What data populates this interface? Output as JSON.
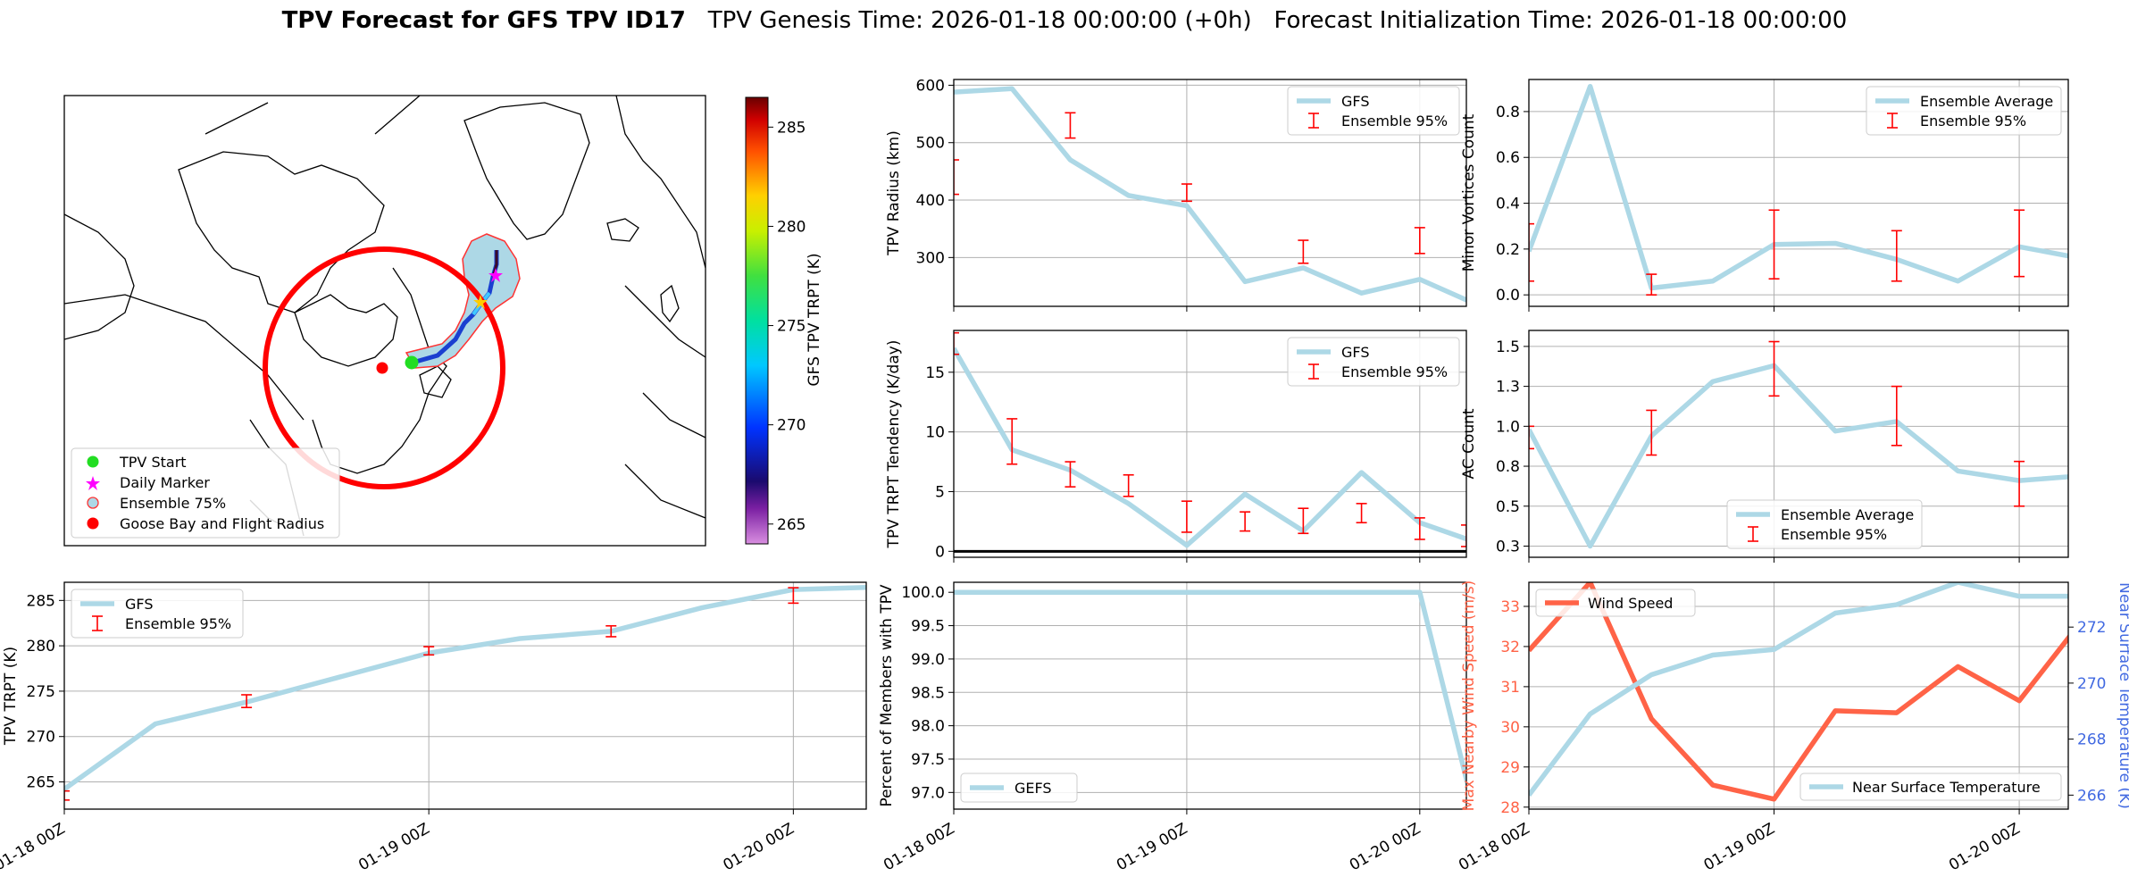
{
  "title": {
    "bold": "TPV Forecast for GFS TPV ID17",
    "genesis": "TPV Genesis Time: 2026-01-18 00:00:00 (+0h)",
    "init": "Forecast Initialization Time: 2026-01-18 00:00:00"
  },
  "colors": {
    "model_line": "#add8e6",
    "error_bar": "#ff0000",
    "wind": "#ff6347",
    "temp_axis": "#4169e1",
    "grid": "#b0b0b0"
  },
  "map": {
    "colorbar_label": "GFS TPV TRPT (K)",
    "colorbar_ticks": [
      "265",
      "270",
      "275",
      "280",
      "285"
    ],
    "colorbar_range": [
      264,
      286.5
    ],
    "legend": [
      "TPV Start",
      "Daily Marker",
      "Ensemble 75%",
      "Goose Bay and Flight Radius"
    ]
  },
  "x_ticks": [
    "01-18 00Z",
    "01-19 00Z",
    "01-20 00Z"
  ],
  "chart_data": [
    {
      "id": "trpt",
      "type": "line",
      "ylabel": "TPV TRPT (K)",
      "xlim": [
        0,
        2.2
      ],
      "ylim": [
        262,
        287
      ],
      "yticks": [
        265,
        270,
        275,
        280,
        285
      ],
      "legend": "top-left",
      "series": [
        {
          "name": "GFS",
          "x": [
            0,
            0.25,
            0.5,
            0.75,
            1.0,
            1.25,
            1.5,
            1.75,
            2.0,
            2.25
          ],
          "y": [
            264.2,
            271.4,
            273.8,
            276.5,
            279.2,
            280.8,
            281.6,
            284.2,
            286.2,
            286.5
          ]
        },
        {
          "name": "Ensemble 95%",
          "x": [
            0,
            0.5,
            1.0,
            1.5,
            2.0
          ],
          "low": [
            263.0,
            273.2,
            279.0,
            281.0,
            284.7
          ],
          "high": [
            264.0,
            274.6,
            279.9,
            282.2,
            286.4
          ]
        }
      ]
    },
    {
      "id": "radius",
      "type": "line",
      "ylabel": "TPV Radius (km)",
      "xlim": [
        0,
        2.2
      ],
      "ylim": [
        215,
        610
      ],
      "yticks": [
        300,
        400,
        500,
        600
      ],
      "legend": "top-right",
      "series": [
        {
          "name": "GFS",
          "x": [
            0,
            0.25,
            0.5,
            0.75,
            1.0,
            1.25,
            1.5,
            1.75,
            2.0,
            2.25
          ],
          "y": [
            588,
            594,
            470,
            408,
            390,
            258,
            282,
            238,
            262,
            217
          ]
        },
        {
          "name": "Ensemble 95%",
          "x": [
            0,
            0.5,
            1.0,
            1.5,
            2.0
          ],
          "low": [
            410,
            508,
            398,
            290,
            307
          ],
          "high": [
            470,
            552,
            428,
            330,
            352
          ]
        }
      ]
    },
    {
      "id": "minor",
      "type": "line",
      "ylabel": "Minor Vortices Count",
      "xlim": [
        0,
        2.2
      ],
      "ylim": [
        -0.05,
        0.94
      ],
      "yticks": [
        0.0,
        0.2,
        0.4,
        0.6,
        0.8
      ],
      "legend": "top-right",
      "series": [
        {
          "name": "Ensemble Average",
          "x": [
            0,
            0.25,
            0.5,
            0.75,
            1.0,
            1.25,
            1.5,
            1.75,
            2.0,
            2.25
          ],
          "y": [
            0.19,
            0.91,
            0.03,
            0.06,
            0.22,
            0.225,
            0.155,
            0.06,
            0.21,
            0.16
          ]
        },
        {
          "name": "Ensemble 95%",
          "x": [
            0,
            0.5,
            1.0,
            1.5,
            2.0
          ],
          "low": [
            0.06,
            0.0,
            0.07,
            0.06,
            0.08
          ],
          "high": [
            0.31,
            0.09,
            0.37,
            0.28,
            0.37
          ]
        }
      ]
    },
    {
      "id": "tendency",
      "type": "line",
      "ylabel": "TPV TRPT Tendency (K/day)",
      "xlim": [
        0,
        2.2
      ],
      "ylim": [
        -0.5,
        18.5
      ],
      "yticks": [
        0,
        5,
        10,
        15
      ],
      "legend": "top-right",
      "series": [
        {
          "name": "GFS",
          "x": [
            0,
            0.25,
            0.5,
            0.75,
            1.0,
            1.25,
            1.5,
            1.75,
            2.0,
            2.25
          ],
          "y": [
            17.0,
            8.5,
            6.8,
            4.0,
            0.5,
            4.8,
            1.7,
            6.6,
            2.4,
            0.7
          ]
        },
        {
          "name": "Ensemble 95%",
          "x": [
            0,
            0.25,
            0.5,
            0.75,
            1.0,
            1.25,
            1.5,
            1.75,
            2.0,
            2.2
          ],
          "low": [
            16.5,
            7.3,
            5.4,
            4.6,
            1.6,
            1.7,
            1.5,
            2.4,
            1.0,
            0.4
          ],
          "high": [
            18.3,
            11.1,
            7.5,
            6.4,
            4.2,
            3.3,
            3.6,
            4.0,
            2.8,
            2.2
          ]
        }
      ]
    },
    {
      "id": "ac",
      "type": "line",
      "ylabel": "AC Count",
      "xlim": [
        0,
        2.2
      ],
      "ylim": [
        0.18,
        1.6
      ],
      "yticks": [
        0.25,
        0.5,
        0.75,
        1.0,
        1.25,
        1.5
      ],
      "legend": "bottom-center",
      "series": [
        {
          "name": "Ensemble Average",
          "x": [
            0,
            0.25,
            0.5,
            0.75,
            1.0,
            1.25,
            1.5,
            1.75,
            2.0,
            2.25
          ],
          "y": [
            0.98,
            0.25,
            0.94,
            1.28,
            1.38,
            0.97,
            1.03,
            0.72,
            0.66,
            0.69
          ]
        },
        {
          "name": "Ensemble 95%",
          "x": [
            0,
            0.5,
            1.0,
            1.5,
            2.0
          ],
          "low": [
            0.86,
            0.82,
            1.19,
            0.88,
            0.5
          ],
          "high": [
            1.0,
            1.1,
            1.53,
            1.25,
            0.78
          ]
        }
      ]
    },
    {
      "id": "percent",
      "type": "line",
      "ylabel": "Percent of Members with TPV",
      "xlim": [
        0,
        2.2
      ],
      "ylim": [
        96.75,
        100.15
      ],
      "yticks": [
        97.0,
        97.5,
        98.0,
        98.5,
        99.0,
        99.5,
        100.0
      ],
      "legend": "bottom-left",
      "series": [
        {
          "name": "GEFS",
          "x": [
            0,
            0.25,
            0.5,
            0.75,
            1.0,
            1.25,
            1.5,
            1.75,
            2.0,
            2.25
          ],
          "y": [
            100,
            100,
            100,
            100,
            100,
            100,
            100,
            100,
            100,
            96.5
          ]
        }
      ]
    },
    {
      "id": "wind_temp",
      "type": "line",
      "ylabel": "Max Nearby Wind Speed (m/s)",
      "y2label": "Near Surface Temperature (K)",
      "xlim": [
        0,
        2.2
      ],
      "ylim": [
        27.95,
        33.6
      ],
      "yticks": [
        28,
        29,
        30,
        31,
        32,
        33
      ],
      "y2lim": [
        265.5,
        273.6
      ],
      "y2ticks": [
        266,
        268,
        270,
        272
      ],
      "series": [
        {
          "name": "Wind Speed",
          "axis": "left",
          "x": [
            0,
            0.25,
            0.5,
            0.75,
            1.0,
            1.25,
            1.5,
            1.75,
            2.0,
            2.25
          ],
          "y": [
            31.9,
            33.6,
            30.2,
            28.55,
            28.2,
            30.4,
            30.35,
            31.5,
            30.65,
            32.6
          ]
        },
        {
          "name": "Near Surface Temperature",
          "axis": "right",
          "x": [
            0,
            0.25,
            0.5,
            0.75,
            1.0,
            1.25,
            1.5,
            1.75,
            2.0,
            2.25
          ],
          "y": [
            266.0,
            268.9,
            270.3,
            271.0,
            271.2,
            272.5,
            272.8,
            273.6,
            273.1,
            273.1
          ]
        }
      ]
    }
  ]
}
